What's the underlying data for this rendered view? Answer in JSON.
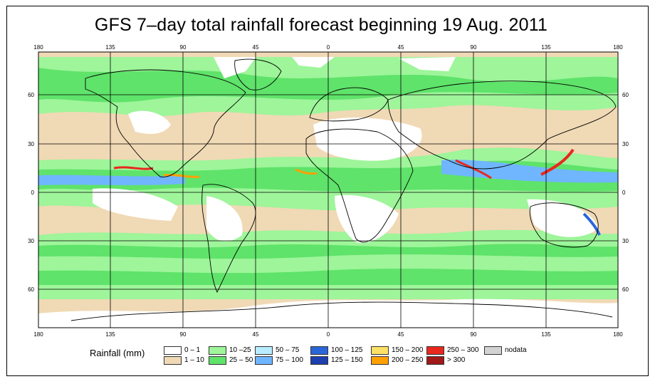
{
  "title": "GFS 7–day total rainfall forecast beginning 19 Aug. 2011",
  "lon_ticks": [
    "180",
    "135",
    "90",
    "45",
    "0",
    "45",
    "90",
    "135",
    "180"
  ],
  "lat_ticks": [
    "60",
    "30",
    "0",
    "30",
    "60"
  ],
  "legend": {
    "title": "Rainfall (mm)",
    "items": [
      {
        "label": "0 – 1",
        "color": "#ffffff"
      },
      {
        "label": "1 – 10",
        "color": "#f0d9b5"
      },
      {
        "label": "10 –25",
        "color": "#9ef59a"
      },
      {
        "label": "25 – 50",
        "color": "#5fe36a"
      },
      {
        "label": "50 – 75",
        "color": "#b8ecff"
      },
      {
        "label": "75 – 100",
        "color": "#6fb6ff"
      },
      {
        "label": "100 – 125",
        "color": "#2a66d8"
      },
      {
        "label": "125 – 150",
        "color": "#1e3fb0"
      },
      {
        "label": "150 – 200",
        "color": "#ffe066"
      },
      {
        "label": "200 – 250",
        "color": "#ffa000"
      },
      {
        "label": "250 – 300",
        "color": "#e8281e"
      },
      {
        "label": "> 300",
        "color": "#a01818"
      },
      {
        "label": "nodata",
        "color": "#d3d3d3"
      }
    ]
  }
}
